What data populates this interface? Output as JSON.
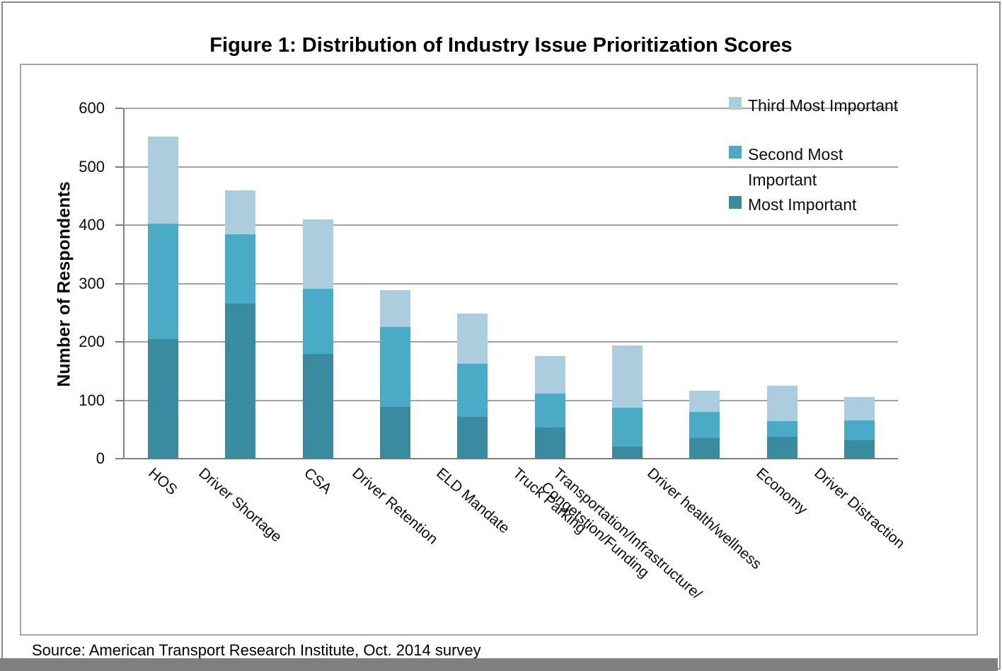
{
  "page": {
    "title": "Figure 1: Distribution of Industry Issue Prioritization Scores",
    "source_note": "Source: American Transport Research Institute, Oct. 2014 survey"
  },
  "chart_data": {
    "type": "bar",
    "stacked": true,
    "title": "Figure 1: Distribution of Industry Issue Prioritization Scores",
    "xlabel": "",
    "ylabel": "Number of Respondents",
    "ylim": [
      0,
      600
    ],
    "yticks": [
      0,
      100,
      200,
      300,
      400,
      500,
      600
    ],
    "grid": true,
    "legend_position": "top-right",
    "categories": [
      "HOS",
      "Driver Shortage",
      "CSA",
      "Driver Retention",
      "ELD Mandate",
      "Truck Parking",
      "Transportation/Infrastructure/Congetstion/Funding",
      "Driver health/wellness",
      "Economy",
      "Driver Distraction"
    ],
    "category_display_lines": [
      [
        "HOS"
      ],
      [
        "Driver Shortage"
      ],
      [
        "CSA"
      ],
      [
        "Driver Retention"
      ],
      [
        "ELD Mandate"
      ],
      [
        "Truck Parking"
      ],
      [
        "Transportation/Infrastructure/",
        "Congetstion/Funding"
      ],
      [
        "Driver health/wellness"
      ],
      [
        "Economy"
      ],
      [
        "Driver Distraction"
      ]
    ],
    "series": [
      {
        "name": "Most Important",
        "color": "#3a8ba0",
        "values": [
          205,
          265,
          180,
          88,
          72,
          53,
          21,
          35,
          38,
          32
        ]
      },
      {
        "name": "Second Most Important",
        "color": "#4aabc6",
        "values": [
          198,
          119,
          111,
          137,
          90,
          59,
          66,
          45,
          26,
          33
        ]
      },
      {
        "name": "Third Most Important",
        "color": "#abcdde",
        "values": [
          149,
          76,
          119,
          64,
          86,
          64,
          107,
          36,
          61,
          41
        ]
      }
    ]
  },
  "legend": {
    "items": [
      {
        "label": "Third Most Important",
        "display": "Third Most Important",
        "color": "#abcdde"
      },
      {
        "label": "Second Most Important",
        "display": "Second Most\nImportant",
        "color": "#4aabc6"
      },
      {
        "label": "Most Important",
        "display": "Most Important",
        "color": "#3a8ba0"
      }
    ]
  },
  "colors": {
    "gridline": "#a3a3a3",
    "axis": "#808080",
    "chart_border": "#a6a6a6",
    "bottom_strip": "#7f7f7f"
  }
}
